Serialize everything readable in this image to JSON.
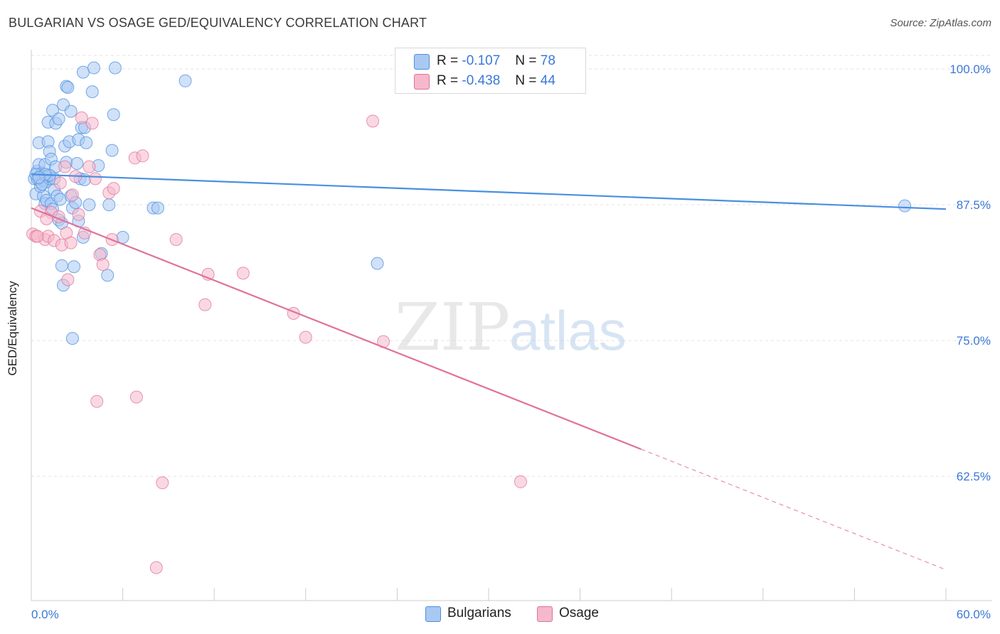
{
  "header": {
    "title": "BULGARIAN VS OSAGE GED/EQUIVALENCY CORRELATION CHART",
    "source": "Source: ZipAtlas.com"
  },
  "watermark": {
    "zip": "ZIP",
    "atlas": "atlas"
  },
  "legend": {
    "rows": [
      {
        "swatch_color": "#a9c9f2",
        "r_label": "R =",
        "r_value": "-0.107",
        "n_label": "N =",
        "n_value": "78"
      },
      {
        "swatch_color": "#f6b8cb",
        "r_label": "R =",
        "r_value": "-0.438",
        "n_label": "N =",
        "n_value": "44"
      }
    ]
  },
  "bottom_legend": [
    {
      "label": "Bulgarians",
      "color": "#a9c9f2"
    },
    {
      "label": "Osage",
      "color": "#f6b8cb"
    }
  ],
  "chart_data": {
    "type": "scatter",
    "title": "BULGARIAN VS OSAGE GED/EQUIVALENCY CORRELATION CHART",
    "xlabel": "",
    "ylabel": "GED/Equivalency",
    "xlim": [
      0,
      60
    ],
    "ylim": [
      52.5,
      101.5
    ],
    "x_tick_labels": [
      "0.0%",
      "60.0%"
    ],
    "y_ticks": [
      100.0,
      87.5,
      75.0,
      62.5
    ],
    "y_tick_labels": [
      "100.0%",
      "87.5%",
      "75.0%",
      "62.5%"
    ],
    "grid": true,
    "legend_position": "top-center",
    "series": [
      {
        "name": "Bulgarians",
        "color": "#4a8fe0",
        "fill": "#a9c9f2",
        "trend": {
          "x": [
            0,
            60
          ],
          "y": [
            90.3,
            87.1
          ]
        },
        "points": [
          [
            0.2,
            89.9
          ],
          [
            0.3,
            88.5
          ],
          [
            0.4,
            90.6
          ],
          [
            0.5,
            91.2
          ],
          [
            0.5,
            93.2
          ],
          [
            0.6,
            89.6
          ],
          [
            0.7,
            90.4
          ],
          [
            0.8,
            89.7
          ],
          [
            0.8,
            88.3
          ],
          [
            0.9,
            91.2
          ],
          [
            0.9,
            87.6
          ],
          [
            1.0,
            89.6
          ],
          [
            1.0,
            87.9
          ],
          [
            1.1,
            93.3
          ],
          [
            1.1,
            95.1
          ],
          [
            1.2,
            89.9
          ],
          [
            1.2,
            92.4
          ],
          [
            1.3,
            91.7
          ],
          [
            1.3,
            87.6
          ],
          [
            1.4,
            96.2
          ],
          [
            1.4,
            87.1
          ],
          [
            1.5,
            88.9
          ],
          [
            1.6,
            95.0
          ],
          [
            1.6,
            91.0
          ],
          [
            1.7,
            88.3
          ],
          [
            1.8,
            95.4
          ],
          [
            1.8,
            86.1
          ],
          [
            1.9,
            88.0
          ],
          [
            2.0,
            85.8
          ],
          [
            2.0,
            81.9
          ],
          [
            2.1,
            80.1
          ],
          [
            2.1,
            96.7
          ],
          [
            2.2,
            92.9
          ],
          [
            2.3,
            91.4
          ],
          [
            2.3,
            98.4
          ],
          [
            2.4,
            98.3
          ],
          [
            2.5,
            93.3
          ],
          [
            2.6,
            96.1
          ],
          [
            2.6,
            88.3
          ],
          [
            2.7,
            87.2
          ],
          [
            2.7,
            75.2
          ],
          [
            2.8,
            81.8
          ],
          [
            2.9,
            87.7
          ],
          [
            3.0,
            91.3
          ],
          [
            3.1,
            93.5
          ],
          [
            3.1,
            86.0
          ],
          [
            3.2,
            89.9
          ],
          [
            3.3,
            94.6
          ],
          [
            3.4,
            99.7
          ],
          [
            3.4,
            84.5
          ],
          [
            3.5,
            94.6
          ],
          [
            3.5,
            89.8
          ],
          [
            3.6,
            93.2
          ],
          [
            3.8,
            87.5
          ],
          [
            4.0,
            97.9
          ],
          [
            4.1,
            100.1
          ],
          [
            4.4,
            91.1
          ],
          [
            4.6,
            83.0
          ],
          [
            5.0,
            81.0
          ],
          [
            5.1,
            87.5
          ],
          [
            5.3,
            92.5
          ],
          [
            5.4,
            95.8
          ],
          [
            5.5,
            100.1
          ],
          [
            6.0,
            84.5
          ],
          [
            8.0,
            87.2
          ],
          [
            8.3,
            87.2
          ],
          [
            10.1,
            98.9
          ],
          [
            22.7,
            82.1
          ],
          [
            57.3,
            87.4
          ],
          [
            0.6,
            89.2
          ],
          [
            1.0,
            90.1
          ],
          [
            0.4,
            89.9
          ],
          [
            0.7,
            89.4
          ],
          [
            1.5,
            89.9
          ],
          [
            0.3,
            90.3
          ],
          [
            1.2,
            90.2
          ],
          [
            0.9,
            90.3
          ],
          [
            0.5,
            90.0
          ]
        ]
      },
      {
        "name": "Osage",
        "color": "#e0729a",
        "fill": "#f6b8cb",
        "trend": {
          "x": [
            0,
            40
          ],
          "y": [
            87.2,
            65.0
          ]
        },
        "trend_dashed": {
          "x": [
            40,
            60
          ],
          "y": [
            65.0,
            53.9
          ]
        },
        "points": [
          [
            0.1,
            84.8
          ],
          [
            0.3,
            84.6
          ],
          [
            0.6,
            86.9
          ],
          [
            0.9,
            84.3
          ],
          [
            1.1,
            84.6
          ],
          [
            1.3,
            86.8
          ],
          [
            1.5,
            84.2
          ],
          [
            1.8,
            86.4
          ],
          [
            1.9,
            89.5
          ],
          [
            2.0,
            83.8
          ],
          [
            2.2,
            91.0
          ],
          [
            2.3,
            84.9
          ],
          [
            2.4,
            80.6
          ],
          [
            2.6,
            84.0
          ],
          [
            2.7,
            88.4
          ],
          [
            2.9,
            90.1
          ],
          [
            3.1,
            86.6
          ],
          [
            3.3,
            95.5
          ],
          [
            3.5,
            84.9
          ],
          [
            3.8,
            91.0
          ],
          [
            4.0,
            95.0
          ],
          [
            4.2,
            89.9
          ],
          [
            4.5,
            82.9
          ],
          [
            4.7,
            82.0
          ],
          [
            5.1,
            88.6
          ],
          [
            5.3,
            84.3
          ],
          [
            5.4,
            89.0
          ],
          [
            6.8,
            91.8
          ],
          [
            7.3,
            92.0
          ],
          [
            4.3,
            69.4
          ],
          [
            6.9,
            69.8
          ],
          [
            8.6,
            61.9
          ],
          [
            8.2,
            54.1
          ],
          [
            9.5,
            84.3
          ],
          [
            11.4,
            78.3
          ],
          [
            11.6,
            81.1
          ],
          [
            13.9,
            81.2
          ],
          [
            17.2,
            77.5
          ],
          [
            18.0,
            75.3
          ],
          [
            23.1,
            74.9
          ],
          [
            22.4,
            95.2
          ],
          [
            32.1,
            62.0
          ],
          [
            0.4,
            84.6
          ],
          [
            1.0,
            86.2
          ]
        ]
      }
    ]
  }
}
